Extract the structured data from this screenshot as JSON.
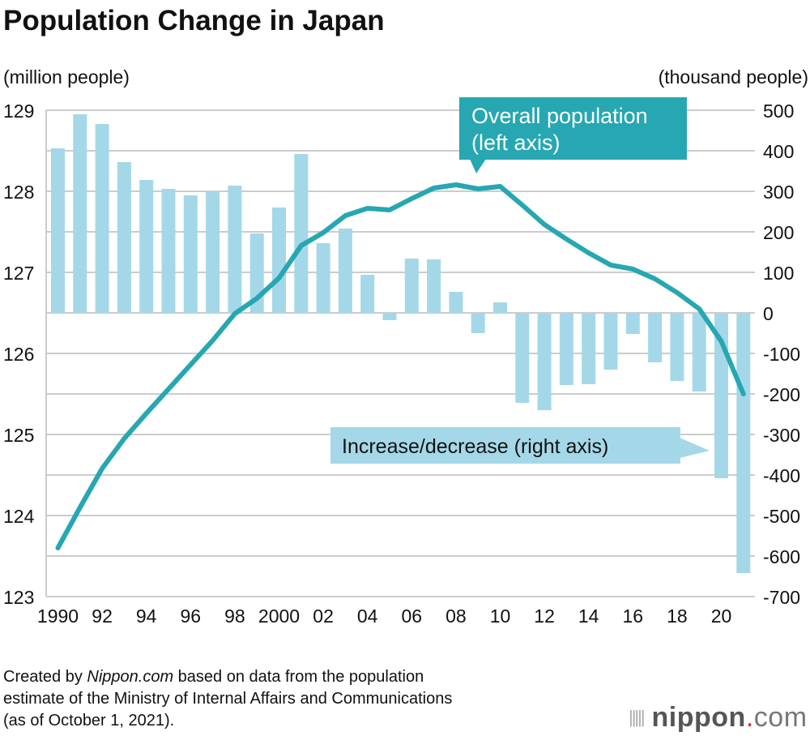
{
  "chart_data": {
    "type": "bar+line",
    "title": "Population Change in Japan",
    "left_axis_label": "(million people)",
    "right_axis_label": "(thousand people)",
    "left_ylim": [
      123,
      129
    ],
    "right_ylim": [
      -700,
      500
    ],
    "left_ticks": [
      "123",
      "124",
      "125",
      "126",
      "127",
      "128",
      "129"
    ],
    "right_ticks": [
      "-700",
      "-600",
      "-500",
      "-400",
      "-300",
      "-200",
      "-100",
      "0",
      "100",
      "200",
      "300",
      "400",
      "500"
    ],
    "grid": true,
    "x": [
      1990,
      1991,
      1992,
      1993,
      1994,
      1995,
      1996,
      1997,
      1998,
      1999,
      2000,
      2001,
      2002,
      2003,
      2004,
      2005,
      2006,
      2007,
      2008,
      2009,
      2010,
      2011,
      2012,
      2013,
      2014,
      2015,
      2016,
      2017,
      2018,
      2019,
      2020,
      2021
    ],
    "x_tick_labels": [
      {
        "year": 1990,
        "label": "1990"
      },
      {
        "year": 1992,
        "label": "92"
      },
      {
        "year": 1994,
        "label": "94"
      },
      {
        "year": 1996,
        "label": "96"
      },
      {
        "year": 1998,
        "label": "98"
      },
      {
        "year": 2000,
        "label": "2000"
      },
      {
        "year": 2002,
        "label": "02"
      },
      {
        "year": 2004,
        "label": "04"
      },
      {
        "year": 2006,
        "label": "06"
      },
      {
        "year": 2008,
        "label": "08"
      },
      {
        "year": 2010,
        "label": "10"
      },
      {
        "year": 2012,
        "label": "12"
      },
      {
        "year": 2014,
        "label": "14"
      },
      {
        "year": 2016,
        "label": "16"
      },
      {
        "year": 2018,
        "label": "18"
      },
      {
        "year": 2020,
        "label": "20"
      }
    ],
    "series": [
      {
        "name": "Increase/decrease (right axis)",
        "type": "bar",
        "axis": "right",
        "color": "#a4d8e8",
        "values": [
          406,
          490,
          466,
          372,
          328,
          306,
          290,
          298,
          314,
          196,
          260,
          392,
          172,
          208,
          94,
          -18,
          134,
          132,
          52,
          -50,
          26,
          -222,
          -240,
          -178,
          -176,
          -140,
          -52,
          -122,
          -168,
          -194,
          -408,
          -642
        ]
      },
      {
        "name": "Overall population (left axis)",
        "type": "line",
        "axis": "left",
        "color": "#26a7b2",
        "values": [
          123.6,
          124.1,
          124.58,
          124.95,
          125.26,
          125.56,
          125.86,
          126.16,
          126.49,
          126.68,
          126.93,
          127.33,
          127.49,
          127.7,
          127.79,
          127.77,
          127.91,
          128.04,
          128.08,
          128.03,
          128.06,
          127.83,
          127.59,
          127.41,
          127.24,
          127.09,
          127.04,
          126.92,
          126.75,
          126.55,
          126.15,
          125.5
        ]
      }
    ],
    "annotations": {
      "line_label": [
        "Overall population",
        "(left axis)"
      ],
      "bar_label": "Increase/decrease (right axis)"
    }
  },
  "source": [
    "Created by ",
    "Nippon.com",
    " based on data from the population",
    "estimate of the Ministry of Internal Affairs and Communications",
    "(as of October 1, 2021)."
  ],
  "logo": {
    "name": "nippon",
    "dot": ".",
    "suffix": "com"
  }
}
